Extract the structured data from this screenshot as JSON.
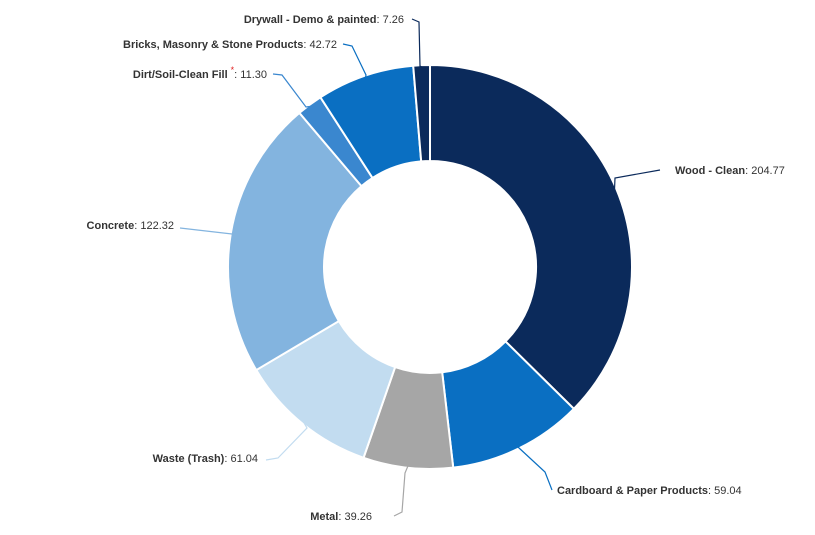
{
  "chart_data": {
    "type": "pie",
    "variant": "donut",
    "title": "",
    "slices": [
      {
        "label": "Wood - Clean",
        "value_text": "204.77",
        "value": 204.77,
        "color": "#0b2a5b",
        "marker": ""
      },
      {
        "label": "Cardboard & Paper Products",
        "value_text": "59.04",
        "value": 59.04,
        "color": "#0a6fc2",
        "marker": ""
      },
      {
        "label": "Metal",
        "value_text": "39.26",
        "value": 39.26,
        "color": "#a6a6a6",
        "marker": ""
      },
      {
        "label": "Waste (Trash)",
        "value_text": "61.04",
        "value": 61.04,
        "color": "#c2dcf0",
        "marker": ""
      },
      {
        "label": "Concrete",
        "value_text": "122.32",
        "value": 122.32,
        "color": "#83b4df",
        "marker": ""
      },
      {
        "label": "Dirt/Soil-Clean Fill",
        "value_text": "11.30",
        "value": 11.3,
        "color": "#3a87cf",
        "marker": "*"
      },
      {
        "label": "Bricks, Masonry & Stone Products",
        "value_text": "42.72",
        "value": 42.72,
        "color": "#0a6fc2",
        "marker": ""
      },
      {
        "label": "Drywall - Demo & painted",
        "value_text": "7.26",
        "value": 7.26,
        "color": "#0b2a5b",
        "marker": ""
      }
    ]
  }
}
